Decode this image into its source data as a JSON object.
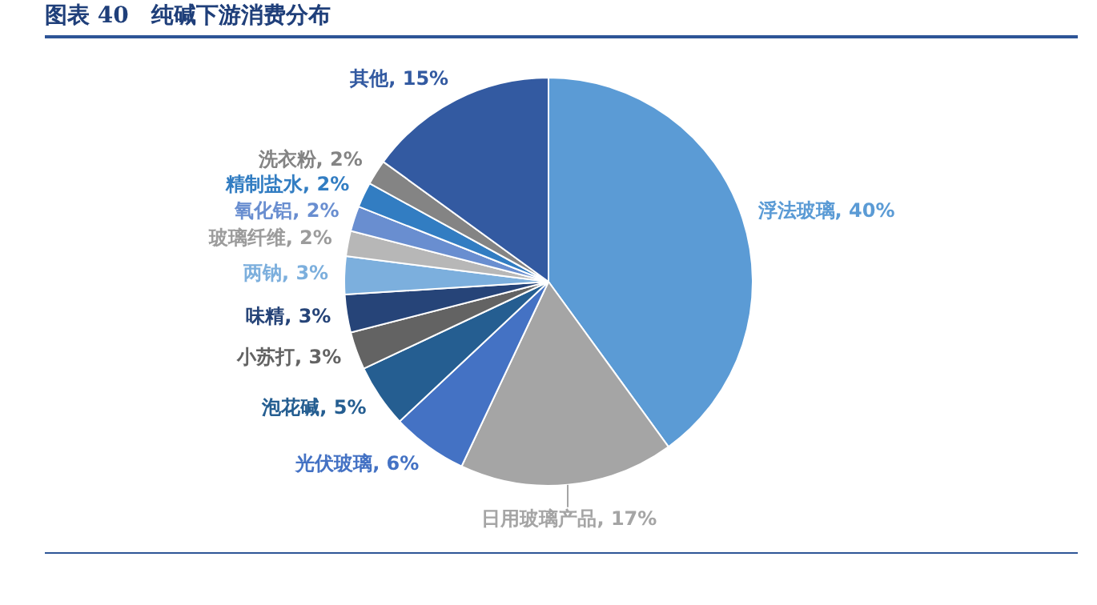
{
  "chart_data": {
    "type": "pie",
    "title": "图表 40　纯碱下游消费分布",
    "categories": [
      "浮法玻璃",
      "日用玻璃产品",
      "光伏玻璃",
      "泡花碱",
      "小苏打",
      "味精",
      "两钠",
      "玻璃纤维",
      "氧化铝",
      "精制盐水",
      "洗衣粉",
      "其他"
    ],
    "values": [
      40,
      17,
      6,
      5,
      3,
      3,
      3,
      2,
      2,
      2,
      2,
      15
    ],
    "value_labels": [
      "40%",
      "17%",
      "6%",
      "5%",
      "3%",
      "3%",
      "3%",
      "2%",
      "2%",
      "2%",
      "2%",
      "15%"
    ],
    "colors": [
      "#5b9bd5",
      "#a5a5a5",
      "#4472c4",
      "#255e91",
      "#636363",
      "#264478",
      "#7cafdd",
      "#b7b7b7",
      "#698ed0",
      "#327dc2",
      "#848484",
      "#335aa1"
    ],
    "data_labels": true,
    "legend": false
  }
}
